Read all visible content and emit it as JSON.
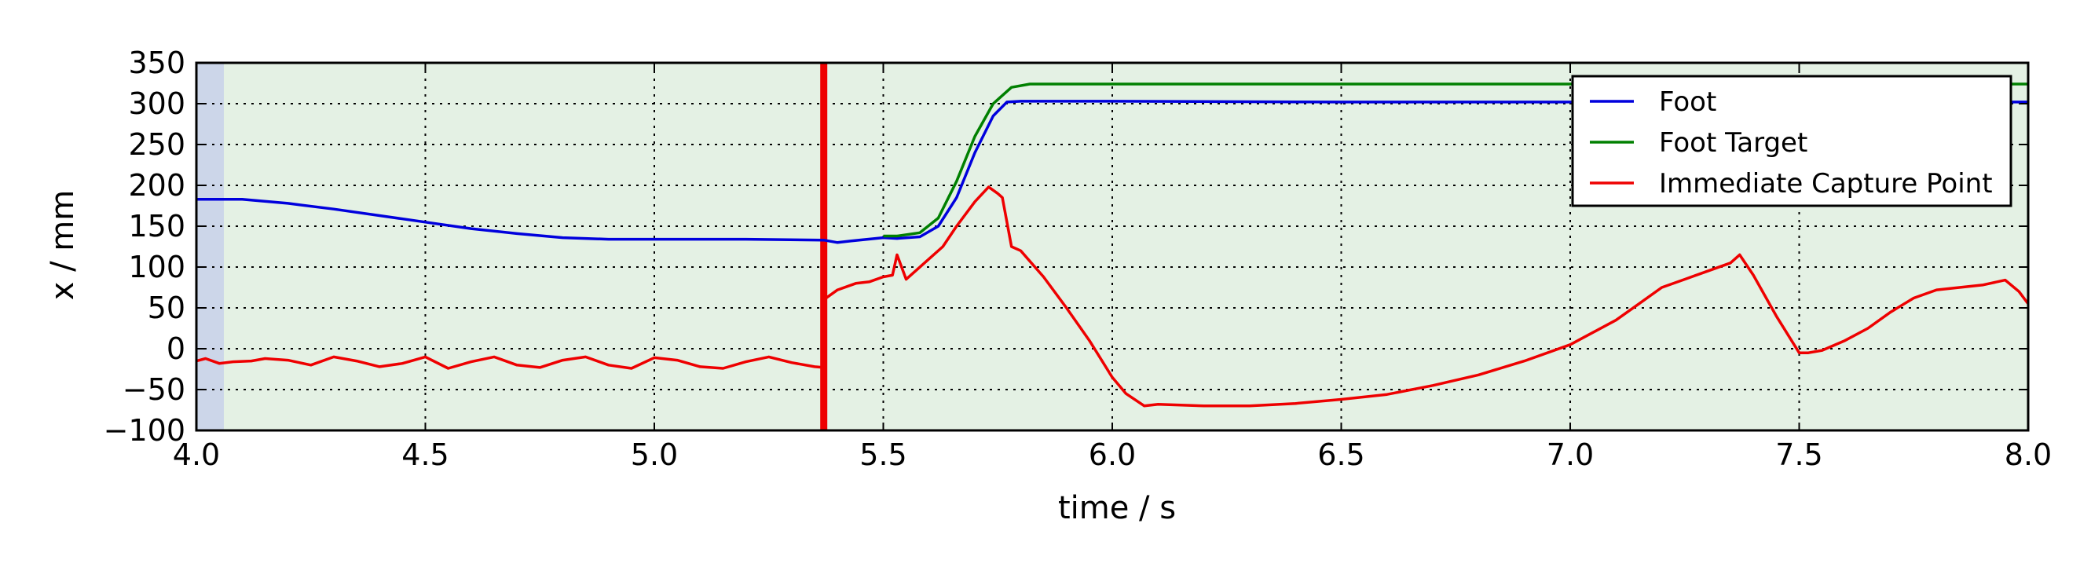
{
  "chart_data": {
    "type": "line",
    "title": "",
    "xlabel": "time / s",
    "ylabel": "x / mm",
    "xlim": [
      4.0,
      8.0
    ],
    "ylim": [
      -100,
      350
    ],
    "xticks": [
      4.0,
      4.5,
      5.0,
      5.5,
      6.0,
      6.5,
      7.0,
      7.5,
      8.0
    ],
    "xtick_labels": [
      "4.0",
      "4.5",
      "5.0",
      "5.5",
      "6.0",
      "6.5",
      "7.0",
      "7.5",
      "8.0"
    ],
    "yticks": [
      -100,
      -50,
      0,
      50,
      100,
      150,
      200,
      250,
      300,
      350
    ],
    "ytick_labels": [
      "−100",
      "−50",
      "0",
      "50",
      "100",
      "150",
      "200",
      "250",
      "300",
      "350"
    ],
    "grid": true,
    "legend_position": "top-right",
    "background_regions": [
      {
        "name": "double-support-phase",
        "x": [
          4.0,
          4.06
        ],
        "color": "#ccd6e9"
      },
      {
        "name": "single-support-phase",
        "x": [
          4.06,
          8.0
        ],
        "color": "#e4f1e4"
      }
    ],
    "vertical_marker": {
      "x": 5.37,
      "color": "#ee0000"
    },
    "series": [
      {
        "name": "Foot",
        "color": "#0000dd",
        "x": [
          4.0,
          4.1,
          4.2,
          4.3,
          4.4,
          4.5,
          4.6,
          4.7,
          4.8,
          4.9,
          5.0,
          5.2,
          5.37,
          5.4,
          5.43,
          5.5,
          5.53,
          5.58,
          5.62,
          5.66,
          5.7,
          5.74,
          5.77,
          5.8,
          6.0,
          6.5,
          7.0,
          7.5,
          8.0
        ],
        "values": [
          183,
          183,
          178,
          171,
          163,
          155,
          147,
          141,
          136,
          134,
          134,
          134,
          133,
          130,
          132,
          136,
          135,
          137,
          150,
          185,
          240,
          285,
          302,
          303,
          303,
          302,
          302,
          302,
          302
        ]
      },
      {
        "name": "Foot Target",
        "color": "#008000",
        "x": [
          5.5,
          5.53,
          5.58,
          5.62,
          5.66,
          5.7,
          5.74,
          5.78,
          5.82,
          6.0,
          6.5,
          7.0,
          7.5,
          8.0
        ],
        "values": [
          138,
          138,
          142,
          160,
          205,
          260,
          300,
          320,
          324,
          324,
          324,
          324,
          324,
          324
        ]
      },
      {
        "name": "Immediate Capture Point",
        "color": "#ee0000",
        "x": [
          4.0,
          4.02,
          4.05,
          4.08,
          4.12,
          4.15,
          4.2,
          4.25,
          4.3,
          4.35,
          4.4,
          4.45,
          4.5,
          4.55,
          4.6,
          4.65,
          4.7,
          4.75,
          4.8,
          4.85,
          4.9,
          4.95,
          5.0,
          5.05,
          5.1,
          5.15,
          5.2,
          5.25,
          5.3,
          5.35,
          5.37,
          5.37,
          5.4,
          5.44,
          5.47,
          5.5,
          5.52,
          5.53,
          5.55,
          5.57,
          5.6,
          5.63,
          5.66,
          5.7,
          5.73,
          5.75,
          5.76,
          5.78,
          5.8,
          5.85,
          5.9,
          5.95,
          6.0,
          6.03,
          6.07,
          6.1,
          6.2,
          6.3,
          6.4,
          6.5,
          6.6,
          6.7,
          6.8,
          6.9,
          7.0,
          7.05,
          7.1,
          7.15,
          7.2,
          7.25,
          7.3,
          7.35,
          7.37,
          7.4,
          7.45,
          7.5,
          7.52,
          7.55,
          7.6,
          7.65,
          7.7,
          7.75,
          7.8,
          7.85,
          7.9,
          7.95,
          7.98,
          8.0
        ],
        "values": [
          -15,
          -12,
          -18,
          -16,
          -15,
          -12,
          -14,
          -20,
          -10,
          -15,
          -22,
          -18,
          -10,
          -24,
          -16,
          -10,
          -20,
          -23,
          -14,
          -10,
          -20,
          -24,
          -11,
          -14,
          -22,
          -24,
          -16,
          -10,
          -17,
          -22,
          -23,
          60,
          72,
          80,
          82,
          88,
          90,
          115,
          85,
          95,
          110,
          125,
          150,
          180,
          198,
          190,
          185,
          125,
          120,
          88,
          50,
          10,
          -35,
          -55,
          -70,
          -68,
          -70,
          -70,
          -67,
          -62,
          -56,
          -45,
          -32,
          -15,
          5,
          20,
          35,
          55,
          75,
          85,
          95,
          105,
          115,
          90,
          40,
          -5,
          -5,
          -2,
          10,
          25,
          45,
          62,
          72,
          75,
          78,
          84,
          70,
          55
        ]
      }
    ]
  }
}
